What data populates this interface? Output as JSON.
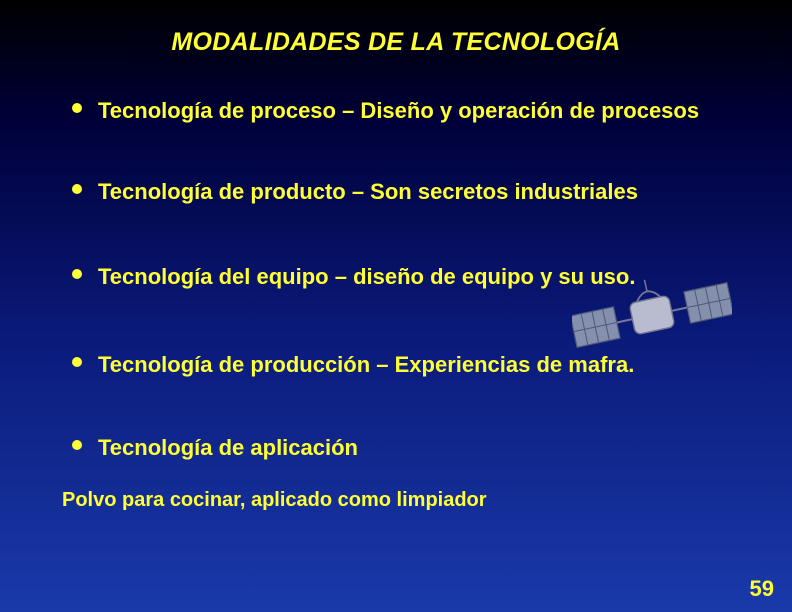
{
  "colors": {
    "text": "#ffff33",
    "bullet": "#ffff33",
    "pageNumber": "#ffff33",
    "satelliteBody": "#d8d8e0",
    "satelliteBodyStroke": "#888899",
    "satellitePanel": "#9aa5b8",
    "satellitePanelStroke": "#5a6578"
  },
  "typography": {
    "titleSize": 25,
    "bulletSize": 22,
    "sublineSize": 20,
    "pageNumberSize": 22
  },
  "title": "MODALIDADES DE LA TECNOLOGÍA",
  "bullets": [
    {
      "text": "Tecnología de proceso – Diseño y operación de procesos"
    },
    {
      "text": "Tecnología de producto – Son secretos industriales"
    },
    {
      "text": "Tecnología del equipo – diseño de equipo y su uso."
    },
    {
      "text": "Tecnología de producción – Experiencias de mafra."
    },
    {
      "text": "Tecnología de aplicación"
    }
  ],
  "subline": "Polvo para cocinar, aplicado como limpiador",
  "pageNumber": "59"
}
